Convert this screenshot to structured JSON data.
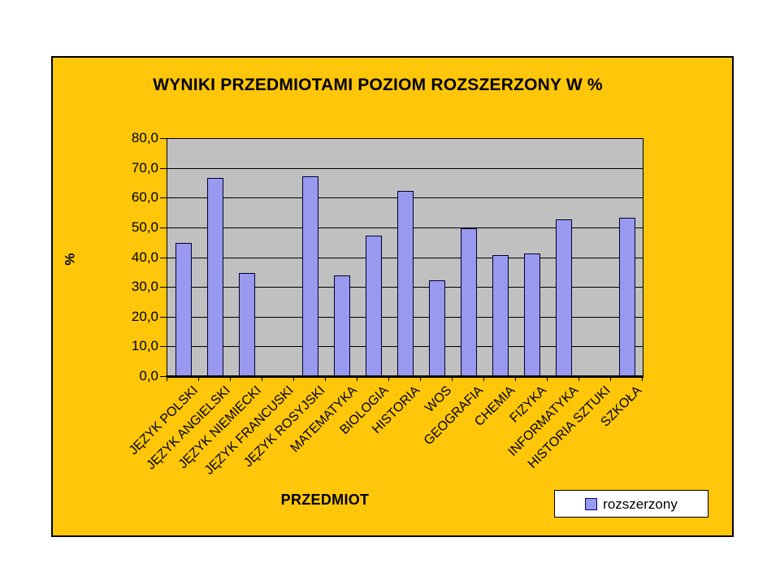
{
  "chart_data": {
    "type": "bar",
    "title": "WYNIKI PRZEDMIOTAMI POZIOM ROZSZERZONY W %",
    "xlabel": "PRZEDMIOT",
    "ylabel": "%",
    "categories": [
      "JĘZYK POLSKI",
      "JĘZYK ANGIELSKI",
      "JĘZYK NIEMIECKI",
      "JĘZYK FRANCUSKI",
      "JĘZYK ROSYJSKI",
      "MATEMATYKA",
      "BIOLOGIA",
      "HISTORIA",
      "WOS",
      "GEOGRAFIA",
      "CHEMIA",
      "FIZYKA",
      "INFORMATYKA",
      "HISTORIA SZTUKI",
      "SZKOŁA"
    ],
    "series": [
      {
        "name": "rozszerzony",
        "values": [
          45.0,
          67.0,
          35.0,
          0.0,
          67.5,
          34.0,
          47.5,
          62.5,
          32.5,
          50.0,
          41.0,
          41.5,
          53.0,
          0.0,
          53.5
        ]
      }
    ],
    "ylim": [
      0,
      80
    ],
    "y_tick_step": 10,
    "y_tick_labels": [
      "0,0",
      "10,0",
      "20,0",
      "30,0",
      "40,0",
      "50,0",
      "60,0",
      "70,0",
      "80,0"
    ],
    "grid": true,
    "legend_position": "bottom-right"
  },
  "colors": {
    "frame_background": "#FFC60A",
    "frame_border": "#000000",
    "plot_background": "#C0C0C0",
    "bar_fill": "#9999F0",
    "bar_border": "#000030",
    "gridline": "#000000",
    "text": "#000000",
    "legend_background": "#FFFFFF"
  }
}
